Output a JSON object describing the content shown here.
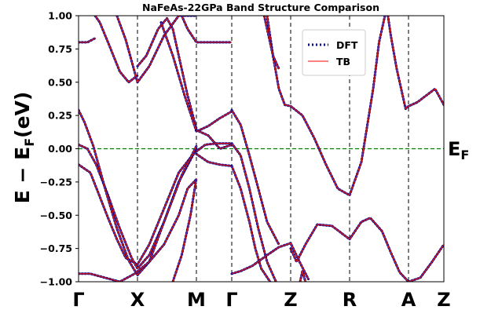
{
  "chart_data": {
    "type": "line",
    "title": "NaFeAs-22GPa Band Structure Comparison",
    "ylabel_main": "E − E",
    "ylabel_sub": "F",
    "ylabel_unit": "(eV)",
    "fermi_label_main": "E",
    "fermi_label_sub": "F",
    "ylim": [
      -1.0,
      1.0
    ],
    "yticks": [
      1.0,
      0.75,
      0.5,
      0.25,
      0.0,
      -0.25,
      -0.5,
      -0.75,
      -1.0
    ],
    "ytick_labels": [
      "1.00",
      "0.75",
      "0.50",
      "0.25",
      "0.00",
      "−0.25",
      "−0.50",
      "−0.75",
      "−1.00"
    ],
    "xlim": [
      0,
      6.2
    ],
    "kpoints": [
      {
        "label": "Γ",
        "x": 0.0
      },
      {
        "label": "X",
        "x": 1.0
      },
      {
        "label": "M",
        "x": 2.0
      },
      {
        "label": "Γ",
        "x": 2.6
      },
      {
        "label": "Z",
        "x": 3.6
      },
      {
        "label": "R",
        "x": 4.6
      },
      {
        "label": "A",
        "x": 5.6
      },
      {
        "label": "Z",
        "x": 6.2
      }
    ],
    "fermi_level": 0.0,
    "legend": {
      "placement": "upper-center",
      "entries": [
        {
          "label": "DFT",
          "style": "dotted",
          "color": "#00008b"
        },
        {
          "label": "TB",
          "style": "solid",
          "color": "#ff0000"
        }
      ]
    },
    "colors": {
      "dft": "#00008b",
      "tb": "#dc1c1c",
      "fermi": "#008000",
      "kline": "#000000"
    },
    "series": [
      {
        "x": [
          0,
          0.2,
          0.35,
          0.5,
          0.65,
          0.8,
          1.0,
          1.2,
          1.45,
          1.7,
          2.0
        ],
        "y": [
          -0.12,
          -0.18,
          -0.35,
          -0.52,
          -0.68,
          -0.82,
          -0.87,
          -0.72,
          -0.45,
          -0.18,
          -0.01
        ]
      },
      {
        "x": [
          0,
          0.15,
          0.3,
          0.5,
          0.7,
          0.9,
          1.0,
          1.2,
          1.45,
          1.7,
          2.0
        ],
        "y": [
          0.03,
          0.0,
          -0.12,
          -0.35,
          -0.6,
          -0.82,
          -0.9,
          -0.8,
          -0.55,
          -0.25,
          0.0
        ]
      },
      {
        "x": [
          0,
          0.1,
          0.25,
          0.45,
          0.65,
          0.85,
          1.0,
          1.2,
          1.45,
          1.75,
          2.0
        ],
        "y": [
          0.29,
          0.2,
          0.02,
          -0.3,
          -0.6,
          -0.84,
          -0.95,
          -0.85,
          -0.55,
          -0.2,
          0.02
        ]
      },
      {
        "x": [
          0,
          0.2,
          0.45,
          0.7,
          0.95,
          1.2,
          1.45,
          1.7,
          1.85,
          2.0
        ],
        "y": [
          -0.94,
          -0.94,
          -0.97,
          -1.0,
          -0.94,
          -0.85,
          -0.72,
          -0.5,
          -0.3,
          -0.23
        ]
      },
      {
        "x": [
          1.6,
          1.75,
          1.9,
          2.0
        ],
        "y": [
          -1.0,
          -0.8,
          -0.5,
          -0.22
        ]
      },
      {
        "x": [
          0,
          0.15,
          0.28
        ],
        "y": [
          0.8,
          0.8,
          0.83
        ]
      },
      {
        "x": [
          0.28,
          0.36,
          0.5,
          0.7,
          0.85,
          1.0
        ],
        "y": [
          1.0,
          0.95,
          0.8,
          0.58,
          0.5,
          0.55
        ]
      },
      {
        "x": [
          1.0,
          1.15,
          1.35,
          1.5,
          1.6,
          1.7,
          1.85,
          2.0
        ],
        "y": [
          0.62,
          0.7,
          0.9,
          0.98,
          0.9,
          0.7,
          0.4,
          0.15
        ]
      },
      {
        "x": [
          0.65,
          0.8,
          1.0,
          1.2,
          1.45,
          1.7,
          2.0
        ],
        "y": [
          1.0,
          0.82,
          0.5,
          0.62,
          0.85,
          1.0,
          1.0
        ]
      },
      {
        "x": [
          1.75,
          1.85,
          2.0,
          2.1,
          2.25,
          2.4,
          2.6
        ],
        "y": [
          1.0,
          0.9,
          0.8,
          0.8,
          0.8,
          0.8,
          0.8
        ]
      },
      {
        "x": [
          1.4,
          1.6,
          1.8,
          2.0,
          2.2,
          2.4,
          2.6
        ],
        "y": [
          0.95,
          0.7,
          0.4,
          0.13,
          0.17,
          0.23,
          0.28
        ]
      },
      {
        "x": [
          2.0,
          2.2,
          2.4,
          2.6
        ],
        "y": [
          0.14,
          0.1,
          0.0,
          0.03
        ]
      },
      {
        "x": [
          2.0,
          2.15,
          2.35,
          2.6
        ],
        "y": [
          -0.02,
          0.03,
          0.04,
          0.04
        ]
      },
      {
        "x": [
          2.0,
          2.2,
          2.4,
          2.6
        ],
        "y": [
          -0.04,
          -0.1,
          -0.12,
          -0.13
        ]
      },
      {
        "x": [
          2.6,
          2.75,
          2.9,
          3.05,
          3.2,
          3.4
        ],
        "y": [
          0.29,
          0.18,
          -0.05,
          -0.3,
          -0.55,
          -0.72
        ]
      },
      {
        "x": [
          2.6,
          2.75,
          2.9,
          3.05,
          3.2,
          3.35
        ],
        "y": [
          0.04,
          -0.05,
          -0.3,
          -0.6,
          -0.85,
          -1.0
        ]
      },
      {
        "x": [
          2.6,
          2.75,
          2.9,
          3.0,
          3.1,
          3.25
        ],
        "y": [
          -0.13,
          -0.3,
          -0.55,
          -0.75,
          -0.9,
          -1.0
        ]
      },
      {
        "x": [
          2.6,
          2.75,
          2.95,
          3.2,
          3.4,
          3.6,
          3.75,
          3.9
        ],
        "y": [
          -0.94,
          -0.92,
          -0.88,
          -0.8,
          -0.74,
          -0.71,
          -0.85,
          -0.98
        ]
      },
      {
        "x": [
          3.6,
          3.7,
          3.85,
          4.05,
          4.3,
          4.6,
          4.8,
          4.95,
          5.15,
          5.3,
          5.45,
          5.6
        ],
        "y": [
          -0.75,
          -0.85,
          -0.72,
          -0.57,
          -0.58,
          -0.68,
          -0.55,
          -0.52,
          -0.62,
          -0.78,
          -0.93,
          -1.0
        ]
      },
      {
        "x": [
          3.76,
          3.8,
          3.85
        ],
        "y": [
          -1.0,
          -0.92,
          -1.0
        ]
      },
      {
        "x": [
          3.2,
          3.3,
          3.4,
          3.5,
          3.6,
          3.8,
          4.0,
          4.2,
          4.4,
          4.6,
          4.8,
          5.0,
          5.1,
          5.2
        ],
        "y": [
          1.0,
          0.7,
          0.45,
          0.33,
          0.32,
          0.25,
          0.08,
          -0.12,
          -0.3,
          -0.35,
          -0.1,
          0.45,
          0.8,
          1.0
        ]
      },
      {
        "x": [
          3.15,
          3.2,
          3.3,
          3.4
        ],
        "y": [
          1.0,
          0.9,
          0.7,
          0.6
        ]
      },
      {
        "x": [
          5.25,
          5.3,
          5.4,
          5.55,
          5.6,
          5.75,
          5.9,
          6.05,
          6.2
        ],
        "y": [
          1.0,
          0.85,
          0.6,
          0.3,
          0.32,
          0.35,
          0.4,
          0.45,
          0.33
        ]
      },
      {
        "x": [
          5.6,
          5.8,
          6.0,
          6.2
        ],
        "y": [
          -1.0,
          -0.97,
          -0.85,
          -0.72
        ]
      }
    ]
  }
}
